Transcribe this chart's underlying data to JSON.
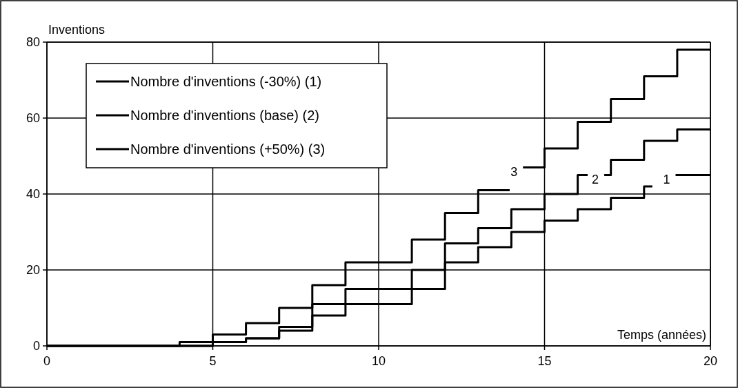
{
  "chart_data": {
    "type": "step",
    "xlabel": "Temps (années)",
    "ylabel": "Inventions",
    "xlim": [
      0,
      20
    ],
    "xticks": [
      0,
      5,
      10,
      15,
      20
    ],
    "ylim": [
      0,
      80
    ],
    "yticks": [
      0,
      20,
      40,
      60,
      80
    ],
    "grid": true,
    "legend": "top left",
    "series": [
      {
        "name": "Nombre d'inventions (-30%) (1)",
        "color": "#000000",
        "x": [
          0,
          5,
          6,
          7,
          8,
          9,
          11,
          12,
          13,
          14,
          15,
          16,
          17,
          18,
          18.25,
          18.95,
          20
        ],
        "values": [
          0,
          1,
          2,
          4,
          8,
          11,
          15,
          22,
          26,
          30,
          33,
          36,
          39,
          42,
          null,
          45,
          45
        ]
      },
      {
        "name": "Nombre d'inventions (base) (2)",
        "color": "#000000",
        "x": [
          0,
          5,
          6,
          7,
          8,
          9,
          11,
          12,
          13,
          14,
          15,
          16,
          16.3,
          16.8,
          17,
          18,
          19,
          20
        ],
        "values": [
          0,
          1,
          2,
          5,
          11,
          15,
          20,
          27,
          31,
          36,
          40,
          45,
          null,
          45,
          49,
          54,
          57,
          57
        ]
      },
      {
        "name": "Nombre d'inventions (+50%) (3)",
        "color": "#000000",
        "x": [
          0,
          4,
          5,
          6,
          7,
          8,
          9,
          11,
          12,
          13,
          13.95,
          14.35,
          15,
          16,
          17,
          18,
          19,
          20
        ],
        "values": [
          0,
          1,
          3,
          6,
          10,
          16,
          22,
          28,
          35,
          41,
          null,
          47,
          52,
          59,
          65,
          71,
          78,
          78
        ]
      }
    ],
    "annotations": [
      {
        "text": "3",
        "x": 14.35,
        "y": 47
      },
      {
        "text": "2",
        "x": 16.8,
        "y": 45
      },
      {
        "text": "1",
        "x": 18.95,
        "y": 45
      }
    ]
  }
}
